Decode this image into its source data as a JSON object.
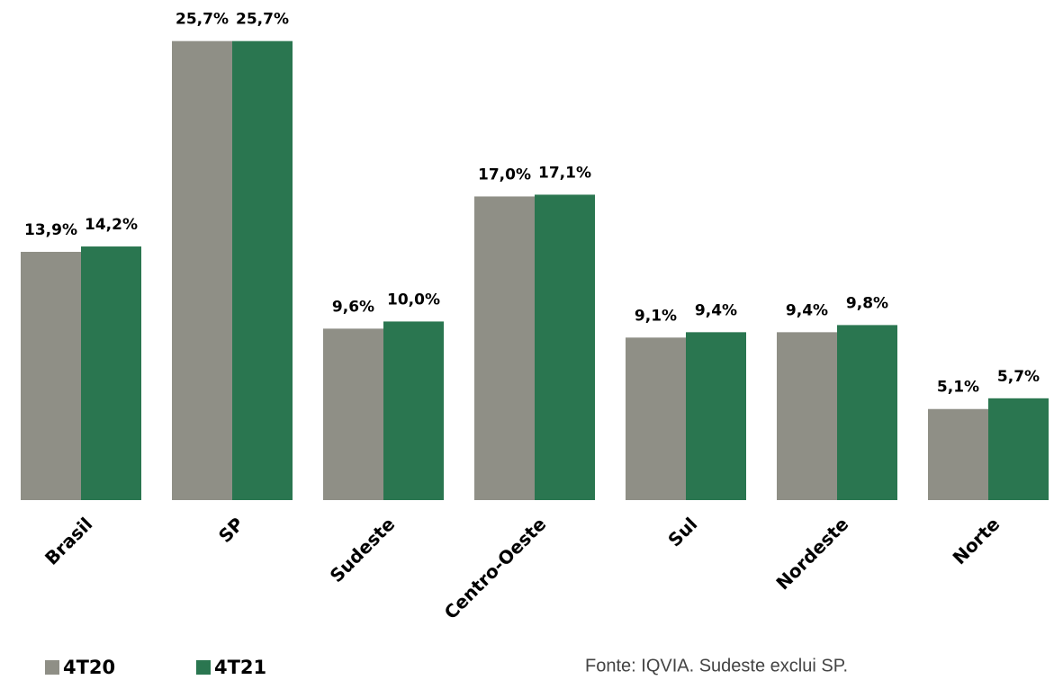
{
  "chart_data": {
    "type": "bar",
    "categories": [
      "Brasil",
      "SP",
      "Sudeste",
      "Centro-Oeste",
      "Sul",
      "Nordeste",
      "Norte"
    ],
    "series": [
      {
        "name": "4T20",
        "color": "#8f8f86",
        "values": [
          13.9,
          25.7,
          9.6,
          17.0,
          9.1,
          9.4,
          5.1
        ],
        "value_labels": [
          "13,9%",
          "25,7%",
          "9,6%",
          "17,0%",
          "9,1%",
          "9,4%",
          "5,1%"
        ]
      },
      {
        "name": "4T21",
        "color": "#2a7650",
        "values": [
          14.2,
          25.7,
          10.0,
          17.1,
          9.4,
          9.8,
          5.7
        ],
        "value_labels": [
          "14,2%",
          "25,7%",
          "10,0%",
          "17,1%",
          "9,4%",
          "9,8%",
          "5,7%"
        ]
      }
    ],
    "ylim": [
      0,
      28
    ],
    "annotations": [
      "Fonte: IQVIA. Sudeste exclui SP."
    ]
  }
}
